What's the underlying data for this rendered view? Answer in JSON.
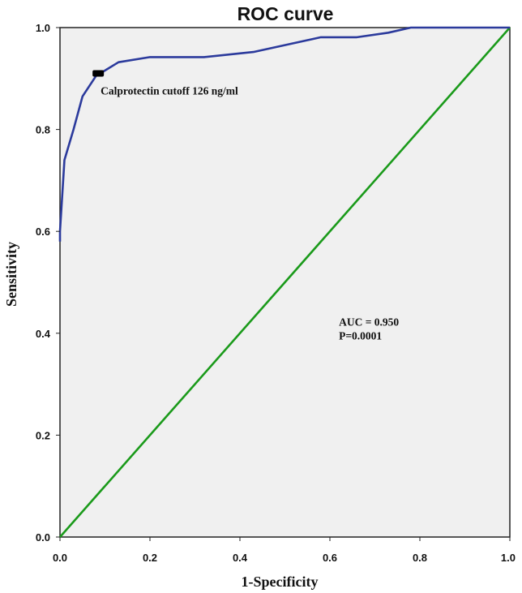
{
  "chart_data": {
    "type": "line",
    "title": "ROC curve",
    "xlabel": "1-Specificity",
    "ylabel": "Sensitivity",
    "xlim": [
      0.0,
      1.0
    ],
    "ylim": [
      0.0,
      1.0
    ],
    "x_ticks": [
      "0.0",
      "0.2",
      "0.4",
      "0.6",
      "0.8",
      "1.0"
    ],
    "y_ticks": [
      "0.0",
      "0.2",
      "0.4",
      "0.6",
      "0.8",
      "1.0"
    ],
    "grid": false,
    "legend": "none",
    "series": [
      {
        "color": "#2b3a9c",
        "x": [
          0.0,
          0.0,
          0.01,
          0.03,
          0.05,
          0.08,
          0.13,
          0.2,
          0.32,
          0.43,
          0.58,
          0.66,
          0.73,
          0.78,
          0.87,
          1.0
        ],
        "y": [
          0.58,
          0.6,
          0.74,
          0.8,
          0.865,
          0.905,
          0.932,
          0.942,
          0.942,
          0.952,
          0.981,
          0.981,
          0.99,
          1.0,
          1.0,
          1.0
        ]
      },
      {
        "color": "#1a9a1a",
        "x": [
          0.0,
          1.0
        ],
        "y": [
          0.0,
          1.0
        ]
      }
    ],
    "cutoff_marker": {
      "x": 0.085,
      "y": 0.91,
      "label": "Calprotectin cutoff 126 ng/ml"
    },
    "annotations": [
      "AUC = 0.950",
      "P=0.0001"
    ]
  }
}
